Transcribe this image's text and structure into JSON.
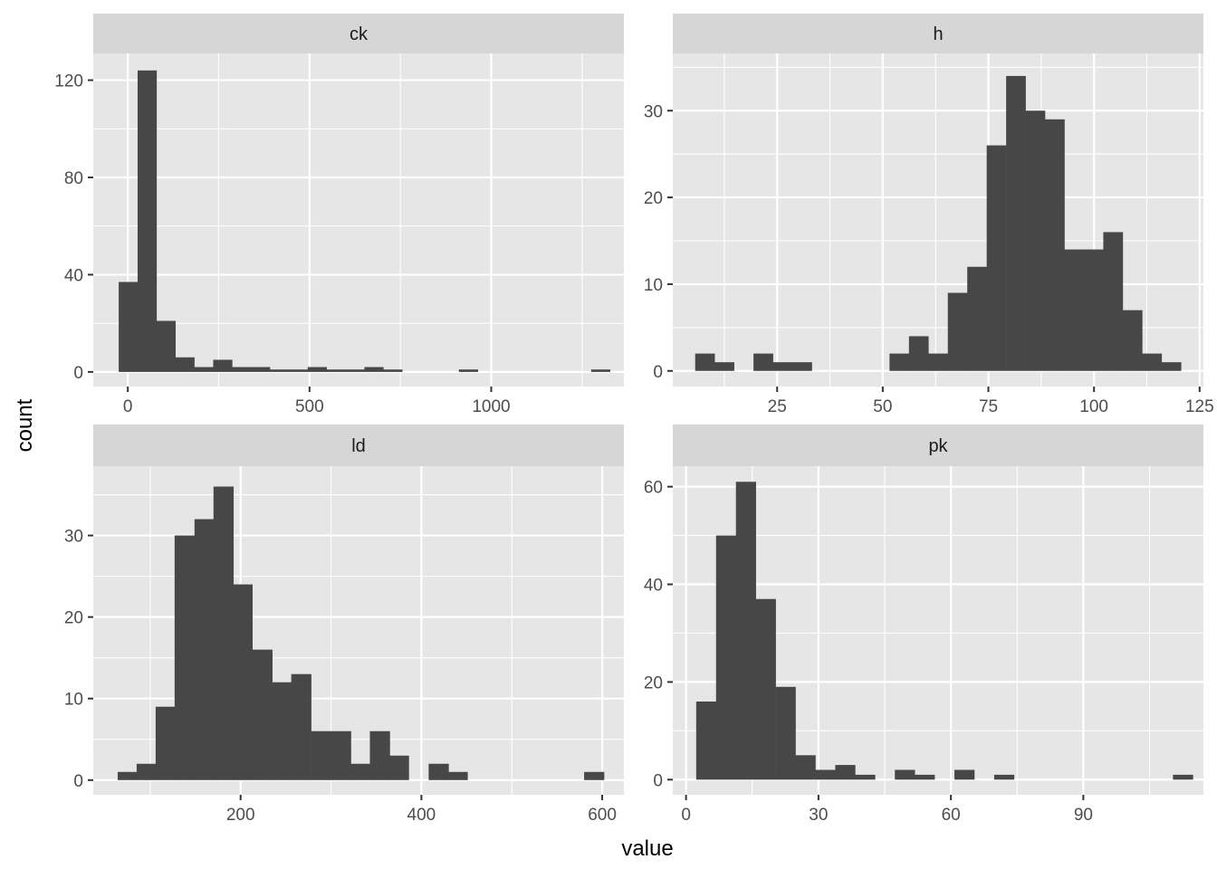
{
  "chart_data": {
    "type": "bar",
    "subtype": "faceted histogram",
    "xlabel": "value",
    "ylabel": "count",
    "grid": true,
    "facets": [
      {
        "label": "ck",
        "xlim": [
          -95,
          1365
        ],
        "ylim": [
          -6,
          131
        ],
        "x_ticks": [
          0,
          500,
          1000
        ],
        "y_ticks": [
          0,
          40,
          80,
          120
        ],
        "bins": [
          {
            "start": -25,
            "end": 27,
            "count": 37
          },
          {
            "start": 27,
            "end": 79,
            "count": 124
          },
          {
            "start": 79,
            "end": 131,
            "count": 21
          },
          {
            "start": 131,
            "end": 183,
            "count": 6
          },
          {
            "start": 183,
            "end": 235,
            "count": 2
          },
          {
            "start": 235,
            "end": 287,
            "count": 5
          },
          {
            "start": 287,
            "end": 339,
            "count": 2
          },
          {
            "start": 339,
            "end": 391,
            "count": 2
          },
          {
            "start": 391,
            "end": 443,
            "count": 1
          },
          {
            "start": 443,
            "end": 495,
            "count": 1
          },
          {
            "start": 495,
            "end": 547,
            "count": 2
          },
          {
            "start": 547,
            "end": 599,
            "count": 1
          },
          {
            "start": 599,
            "end": 651,
            "count": 1
          },
          {
            "start": 651,
            "end": 703,
            "count": 2
          },
          {
            "start": 703,
            "end": 755,
            "count": 1
          },
          {
            "start": 755,
            "end": 807,
            "count": 0
          },
          {
            "start": 807,
            "end": 859,
            "count": 0
          },
          {
            "start": 859,
            "end": 911,
            "count": 0
          },
          {
            "start": 911,
            "end": 963,
            "count": 1
          },
          {
            "start": 963,
            "end": 1015,
            "count": 0
          },
          {
            "start": 1015,
            "end": 1067,
            "count": 0
          },
          {
            "start": 1067,
            "end": 1119,
            "count": 0
          },
          {
            "start": 1119,
            "end": 1171,
            "count": 0
          },
          {
            "start": 1171,
            "end": 1223,
            "count": 0
          },
          {
            "start": 1223,
            "end": 1275,
            "count": 0
          },
          {
            "start": 1275,
            "end": 1327,
            "count": 1
          }
        ]
      },
      {
        "label": "h",
        "xlim": [
          0.3,
          125.9
        ],
        "ylim": [
          -1.8,
          36.6
        ],
        "x_ticks": [
          25,
          50,
          75,
          100,
          125
        ],
        "y_ticks": [
          0,
          10,
          20,
          30
        ],
        "bins": [
          {
            "start": 5.6,
            "end": 10.2,
            "count": 2
          },
          {
            "start": 10.2,
            "end": 14.8,
            "count": 1
          },
          {
            "start": 14.8,
            "end": 19.4,
            "count": 0
          },
          {
            "start": 19.4,
            "end": 24.0,
            "count": 2
          },
          {
            "start": 24.0,
            "end": 28.6,
            "count": 1
          },
          {
            "start": 28.6,
            "end": 33.2,
            "count": 1
          },
          {
            "start": 33.2,
            "end": 37.8,
            "count": 0
          },
          {
            "start": 37.8,
            "end": 42.4,
            "count": 0
          },
          {
            "start": 42.4,
            "end": 47.0,
            "count": 0
          },
          {
            "start": 47.0,
            "end": 51.6,
            "count": 0
          },
          {
            "start": 51.6,
            "end": 56.2,
            "count": 2
          },
          {
            "start": 56.2,
            "end": 60.8,
            "count": 4
          },
          {
            "start": 60.8,
            "end": 65.4,
            "count": 2
          },
          {
            "start": 65.4,
            "end": 70.0,
            "count": 9
          },
          {
            "start": 70.0,
            "end": 74.6,
            "count": 12
          },
          {
            "start": 74.6,
            "end": 79.2,
            "count": 26
          },
          {
            "start": 79.2,
            "end": 83.8,
            "count": 34
          },
          {
            "start": 83.8,
            "end": 88.4,
            "count": 30
          },
          {
            "start": 88.4,
            "end": 93.0,
            "count": 29
          },
          {
            "start": 93.0,
            "end": 97.6,
            "count": 14
          },
          {
            "start": 97.6,
            "end": 102.2,
            "count": 14
          },
          {
            "start": 102.2,
            "end": 106.8,
            "count": 16
          },
          {
            "start": 106.8,
            "end": 111.4,
            "count": 7
          },
          {
            "start": 111.4,
            "end": 116.0,
            "count": 2
          },
          {
            "start": 116.0,
            "end": 120.6,
            "count": 1
          }
        ]
      },
      {
        "label": "ld",
        "xlim": [
          37,
          624
        ],
        "ylim": [
          -1.8,
          38.5
        ],
        "x_ticks": [
          200,
          400,
          600
        ],
        "y_ticks": [
          0,
          10,
          20,
          30
        ],
        "bins": [
          {
            "start": 64,
            "end": 85,
            "count": 1
          },
          {
            "start": 85,
            "end": 106,
            "count": 2
          },
          {
            "start": 106,
            "end": 127,
            "count": 9
          },
          {
            "start": 127,
            "end": 149,
            "count": 30
          },
          {
            "start": 149,
            "end": 170,
            "count": 32
          },
          {
            "start": 170,
            "end": 192,
            "count": 36
          },
          {
            "start": 192,
            "end": 213,
            "count": 24
          },
          {
            "start": 213,
            "end": 235,
            "count": 16
          },
          {
            "start": 235,
            "end": 256,
            "count": 12
          },
          {
            "start": 256,
            "end": 278,
            "count": 13
          },
          {
            "start": 278,
            "end": 300,
            "count": 6
          },
          {
            "start": 300,
            "end": 322,
            "count": 6
          },
          {
            "start": 322,
            "end": 343,
            "count": 2
          },
          {
            "start": 343,
            "end": 365,
            "count": 6
          },
          {
            "start": 365,
            "end": 386,
            "count": 3
          },
          {
            "start": 386,
            "end": 408,
            "count": 0
          },
          {
            "start": 408,
            "end": 430,
            "count": 2
          },
          {
            "start": 430,
            "end": 451,
            "count": 1
          },
          {
            "start": 451,
            "end": 473,
            "count": 0
          },
          {
            "start": 473,
            "end": 494,
            "count": 0
          },
          {
            "start": 494,
            "end": 516,
            "count": 0
          },
          {
            "start": 516,
            "end": 537,
            "count": 0
          },
          {
            "start": 537,
            "end": 559,
            "count": 0
          },
          {
            "start": 559,
            "end": 580,
            "count": 0
          },
          {
            "start": 580,
            "end": 602,
            "count": 1
          }
        ]
      },
      {
        "label": "pk",
        "xlim": [
          -3.0,
          117.2
        ],
        "ylim": [
          -3.1,
          64.2
        ],
        "x_ticks": [
          0,
          30,
          60,
          90
        ],
        "y_ticks": [
          0,
          20,
          40,
          60
        ],
        "bins": [
          {
            "start": 2.3,
            "end": 6.8,
            "count": 16
          },
          {
            "start": 6.8,
            "end": 11.3,
            "count": 50
          },
          {
            "start": 11.3,
            "end": 15.8,
            "count": 61
          },
          {
            "start": 15.8,
            "end": 20.3,
            "count": 37
          },
          {
            "start": 20.3,
            "end": 24.8,
            "count": 19
          },
          {
            "start": 24.8,
            "end": 29.3,
            "count": 5
          },
          {
            "start": 29.3,
            "end": 33.8,
            "count": 2
          },
          {
            "start": 33.8,
            "end": 38.3,
            "count": 3
          },
          {
            "start": 38.3,
            "end": 42.8,
            "count": 1
          },
          {
            "start": 42.8,
            "end": 47.3,
            "count": 0
          },
          {
            "start": 47.3,
            "end": 51.8,
            "count": 2
          },
          {
            "start": 51.8,
            "end": 56.3,
            "count": 1
          },
          {
            "start": 56.3,
            "end": 60.8,
            "count": 0
          },
          {
            "start": 60.8,
            "end": 65.3,
            "count": 2
          },
          {
            "start": 65.3,
            "end": 69.8,
            "count": 0
          },
          {
            "start": 69.8,
            "end": 74.3,
            "count": 1
          },
          {
            "start": 74.3,
            "end": 78.8,
            "count": 0
          },
          {
            "start": 78.8,
            "end": 83.3,
            "count": 0
          },
          {
            "start": 83.3,
            "end": 87.8,
            "count": 0
          },
          {
            "start": 87.8,
            "end": 92.3,
            "count": 0
          },
          {
            "start": 92.3,
            "end": 96.8,
            "count": 0
          },
          {
            "start": 96.8,
            "end": 101.3,
            "count": 0
          },
          {
            "start": 101.3,
            "end": 105.8,
            "count": 0
          },
          {
            "start": 105.8,
            "end": 110.3,
            "count": 0
          },
          {
            "start": 110.3,
            "end": 114.8,
            "count": 1
          }
        ]
      }
    ]
  }
}
